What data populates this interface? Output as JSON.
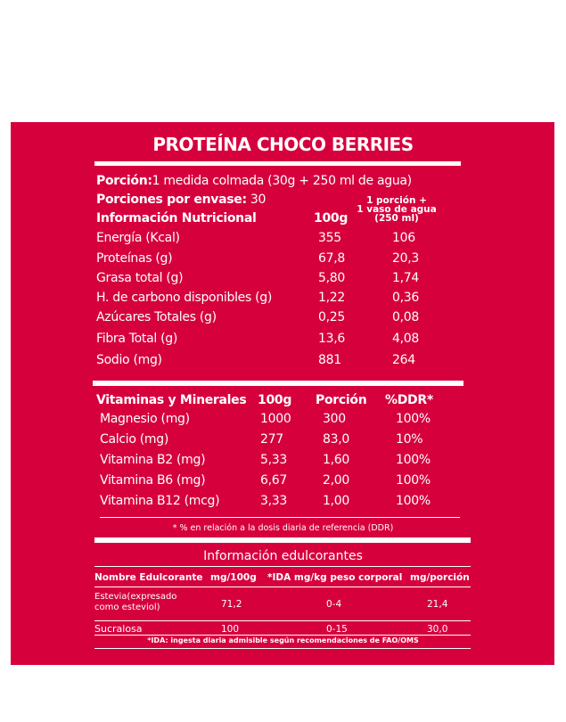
{
  "title": "PROTEÍNA CHOCO BERRIES",
  "serving": {
    "label": "Porción:",
    "value": "1 medida colmada (30g + 250 ml de agua)"
  },
  "servings_per_container": {
    "label": "Porciones por envase:",
    "value": "30"
  },
  "nutrition": {
    "header": "Información Nutricional",
    "col1": "100g",
    "col2_line1": "1 porción +",
    "col2_line2": "1 vaso de agua",
    "col2_line3": "(250 ml)",
    "rows": [
      {
        "name": "Energía (Kcal)",
        "per100": "355",
        "portion": "106"
      },
      {
        "name": "Proteínas (g)",
        "per100": "67,8",
        "portion": "20,3"
      },
      {
        "name": "Grasa total (g)",
        "per100": "5,80",
        "portion": "1,74"
      },
      {
        "name": "H. de carbono disponibles (g)",
        "per100": "1,22",
        "portion": "0,36"
      },
      {
        "name": "Azúcares Totales (g)",
        "per100": "0,25",
        "portion": "0,08"
      },
      {
        "name": "Fibra Total (g)",
        "per100": "13,6",
        "portion": "4,08"
      },
      {
        "name": "Sodio (mg)",
        "per100": "881",
        "portion": "264"
      }
    ]
  },
  "vitamins": {
    "header": "Vitaminas y Minerales",
    "col1": "100g",
    "col2": "Porción",
    "col3": "%DDR*",
    "rows": [
      {
        "name": "Magnesio (mg)",
        "per100": "1000",
        "portion": "300",
        "ddr": "100%"
      },
      {
        "name": "Calcio (mg)",
        "per100": "277",
        "portion": "83,0",
        "ddr": "10%"
      },
      {
        "name": "Vitamina B2 (mg)",
        "per100": "5,33",
        "portion": "1,60",
        "ddr": "100%"
      },
      {
        "name": "Vitamina B6 (mg)",
        "per100": "6,67",
        "portion": "2,00",
        "ddr": "100%"
      },
      {
        "name": "Vitamina B12 (mcg)",
        "per100": "3,33",
        "portion": "1,00",
        "ddr": "100%"
      }
    ],
    "footnote": "* % en relación a la dosis diaria de referencia (DDR)"
  },
  "sweeteners": {
    "title": "Información edulcorantes",
    "headers": [
      "Nombre Edulcorante",
      "mg/100g",
      "*IDA mg/kg peso corporal",
      "mg/porción"
    ],
    "rows": [
      {
        "name": "Estevia(expresado",
        "name2": "como esteviol)",
        "per100": "71,2",
        "ida": "0-4",
        "portion": "21,4"
      },
      {
        "name": "Sucralosa",
        "per100": "100",
        "ida": "0-15",
        "portion": "30,0"
      }
    ],
    "footnote": "*IDA: ingesta diaria admisible según recomendaciones de FAO/OMS"
  },
  "colors": {
    "background": "#d6003d",
    "text": "#ffffff"
  }
}
